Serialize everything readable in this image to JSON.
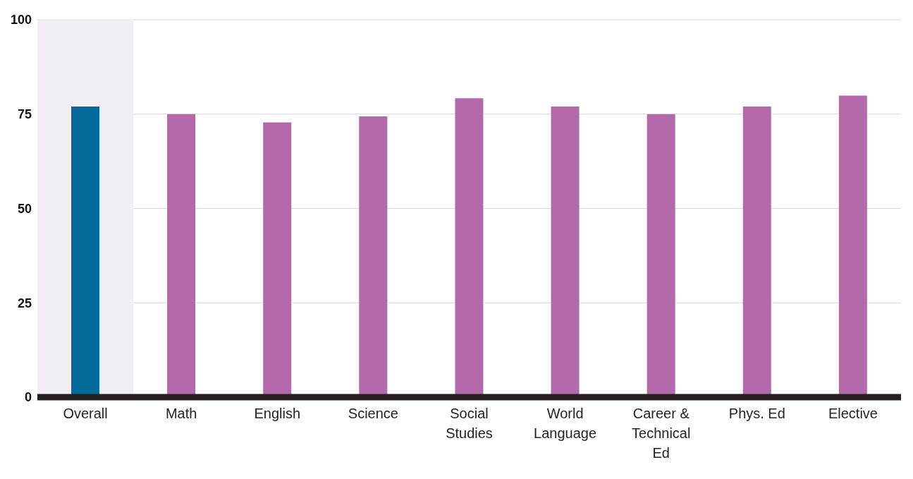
{
  "chart_data": {
    "type": "bar",
    "categories": [
      "Overall",
      "Math",
      "English",
      "Science",
      "Social Studies",
      "World Language",
      "Career & Technical Ed",
      "Phys. Ed",
      "Elective"
    ],
    "values": [
      77,
      75,
      72.8,
      74.4,
      79.2,
      77,
      75,
      77,
      79.9
    ],
    "colors": [
      "#006a99",
      "#b26aab",
      "#b26aab",
      "#b26aab",
      "#b26aab",
      "#b26aab",
      "#b26aab",
      "#b26aab",
      "#b26aab"
    ],
    "ylim": [
      0,
      100
    ],
    "yticks": [
      0,
      25,
      50,
      75,
      100
    ],
    "grid": "y",
    "bands": [
      {
        "axis": "x",
        "from": "Overall",
        "to": "Overall",
        "color": "#f3eef5"
      }
    ]
  }
}
